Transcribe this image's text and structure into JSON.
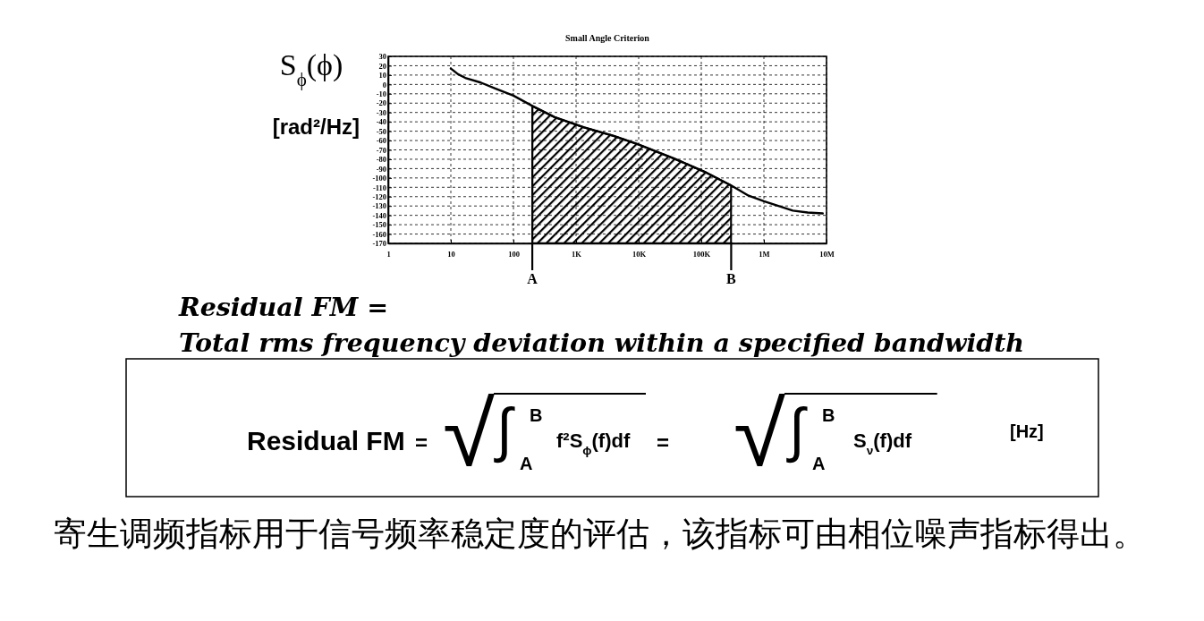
{
  "chart_data": {
    "type": "line",
    "title": "Small Angle Criterion",
    "ylabel": "S$_{ϕ}$(ϕ) [rad²/Hz]",
    "log": "x",
    "xlim": [
      1,
      10000000
    ],
    "ylim": [
      -170,
      30
    ],
    "xticks": [
      1,
      10,
      100,
      {
        "value": 1000,
        "label": "1K"
      },
      {
        "value": 10000,
        "label": "10K"
      },
      {
        "value": 100000,
        "label": "100K"
      },
      {
        "value": 1000000,
        "label": "1M"
      },
      {
        "value": 10000000,
        "label": "10M"
      }
    ],
    "yticks": [
      -170,
      -160,
      -150,
      -140,
      -130,
      -120,
      -110,
      -100,
      -90,
      -80,
      -70,
      -60,
      -50,
      -40,
      -30,
      -20,
      -10,
      0,
      10,
      20,
      30
    ],
    "grid": true,
    "series": [
      {
        "color": "#000000",
        "x": [
          10,
          13,
          17,
          30,
          50,
          100,
          200,
          455,
          1350,
          4000,
          9700,
          36000,
          110000,
          300000,
          570000,
          1000000,
          2900000,
          5000000,
          8700000
        ],
        "values": [
          17,
          11,
          7,
          2,
          -4,
          -12,
          -23,
          -35,
          -46,
          -55,
          -64,
          -79,
          -93,
          -108,
          -119,
          -125,
          -135,
          -137,
          -138
        ],
        "lower": [
          null,
          null,
          null,
          null,
          null,
          null,
          -170,
          -170,
          -170,
          -170,
          -170,
          -170,
          -170,
          -170,
          null,
          null,
          null,
          null,
          null
        ],
        "upper": [
          null,
          null,
          null,
          null,
          null,
          null,
          -23,
          -35,
          -46,
          -55,
          -64,
          -79,
          -93,
          -108,
          null,
          null,
          null,
          null,
          null
        ]
      }
    ],
    "ref_lines": [
      {
        "axis": "x",
        "value": 200,
        "label": "A"
      },
      {
        "axis": "x",
        "value": 300000,
        "label": "B"
      }
    ],
    "annotations": [
      "Residual FM =",
      "Total rms frequency deviation within a specified bandwidth",
      "Residual FM = √∫$^{B}$$_{A}$ f²S$_{ϕ}$(f)df = √∫$^{B}$$_{A}$ S$_{ν}$(f)df [Hz]",
      "寄生调频指标用于信号频率稳定度的评估，该指标可由相位噪声指标得出。"
    ]
  }
}
